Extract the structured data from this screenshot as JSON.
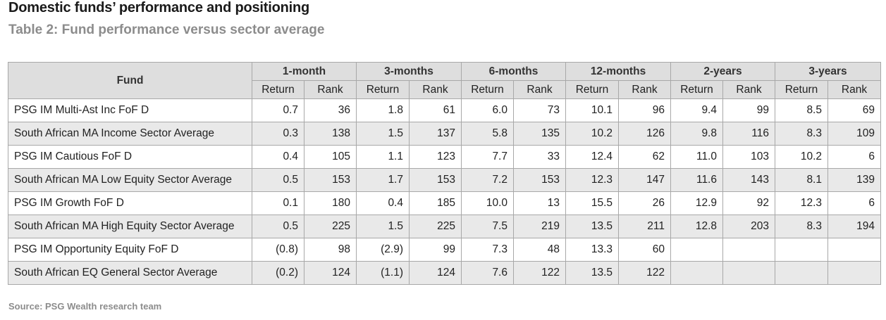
{
  "title": "Domestic funds’ performance and positioning",
  "subtitle": "Table 2: Fund performance versus sector average",
  "table": {
    "fund_header": "Fund",
    "periods": [
      "1-month",
      "3-months",
      "6-months",
      "12-months",
      "2-years",
      "3-years"
    ],
    "sub_headers": {
      "return": "Return",
      "rank": "Rank"
    },
    "rows": [
      {
        "fund": "PSG IM Multi-Ast Inc FoF D",
        "values": [
          "0.7",
          "36",
          "1.8",
          "61",
          "6.0",
          "73",
          "10.1",
          "96",
          "9.4",
          "99",
          "8.5",
          "69"
        ]
      },
      {
        "fund": "South African MA Income Sector Average",
        "values": [
          "0.3",
          "138",
          "1.5",
          "137",
          "5.8",
          "135",
          "10.2",
          "126",
          "9.8",
          "116",
          "8.3",
          "109"
        ]
      },
      {
        "fund": "PSG IM Cautious FoF D",
        "values": [
          "0.4",
          "105",
          "1.1",
          "123",
          "7.7",
          "33",
          "12.4",
          "62",
          "11.0",
          "103",
          "10.2",
          "6"
        ]
      },
      {
        "fund": "South African MA Low Equity Sector Average",
        "values": [
          "0.5",
          "153",
          "1.7",
          "153",
          "7.2",
          "153",
          "12.3",
          "147",
          "11.6",
          "143",
          "8.1",
          "139"
        ]
      },
      {
        "fund": "PSG IM Growth FoF D",
        "values": [
          "0.1",
          "180",
          "0.4",
          "185",
          "10.0",
          "13",
          "15.5",
          "26",
          "12.9",
          "92",
          "12.3",
          "6"
        ]
      },
      {
        "fund": "South African MA High Equity Sector Average",
        "values": [
          "0.5",
          "225",
          "1.5",
          "225",
          "7.5",
          "219",
          "13.5",
          "211",
          "12.8",
          "203",
          "8.3",
          "194"
        ]
      },
      {
        "fund": "PSG IM Opportunity Equity FoF D",
        "values": [
          "(0.8)",
          "98",
          "(2.9)",
          "99",
          "7.3",
          "48",
          "13.3",
          "60",
          "",
          "",
          "",
          ""
        ]
      },
      {
        "fund": "South African EQ General Sector Average",
        "values": [
          "(0.2)",
          "124",
          "(1.1)",
          "124",
          "7.6",
          "122",
          "13.5",
          "122",
          "",
          "",
          "",
          ""
        ]
      }
    ]
  },
  "source": "Source: PSG Wealth research team"
}
